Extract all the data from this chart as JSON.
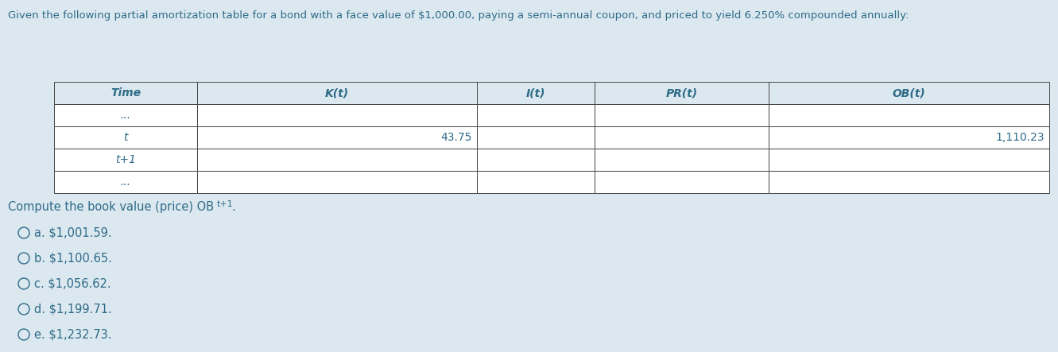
{
  "background_color": "#dce8f0",
  "header_text": "Given the following partial amortization table for a bond with a face value of $1,000.00, paying a semi-annual coupon, and priced to yield 6.250% compounded annually:",
  "table_headers": [
    "Time",
    "K(t)",
    "I(t)",
    "PR(t)",
    "OB(t)"
  ],
  "table_rows": [
    [
      "...",
      "",
      "",
      "",
      ""
    ],
    [
      "t",
      "43.75",
      "",
      "",
      "1,110.23"
    ],
    [
      "t+1",
      "",
      "",
      "",
      ""
    ],
    [
      "...",
      "",
      "",
      "",
      ""
    ]
  ],
  "choices": [
    "a. $1,001.59.",
    "b. $1,100.65.",
    "c. $1,056.62.",
    "d. $1,199.71.",
    "e. $1,232.73."
  ],
  "text_color": "#2e6b87",
  "border_color": "#444444",
  "table_header_bg": "#dce8f0",
  "table_cell_bg": "#ffffff",
  "header_fontsize": 9.5,
  "table_fontsize": 10,
  "choice_fontsize": 10.5
}
